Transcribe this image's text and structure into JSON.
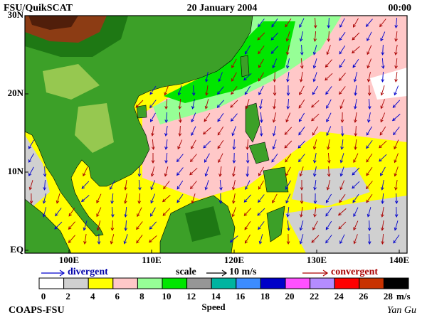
{
  "header": {
    "left": "FSU/QuikSCAT",
    "title": "20 January 2004",
    "time": "00:00"
  },
  "map": {
    "lat_labels": [
      "30N",
      "20N",
      "10N",
      "EQ"
    ],
    "lon_labels": [
      "100E",
      "110E",
      "120E",
      "130E",
      "140E"
    ]
  },
  "legend": {
    "divergent": "divergent",
    "scale": "scale",
    "scale_value": "10 m/s",
    "convergent": "convergent"
  },
  "colorbar": {
    "labels": [
      "0",
      "2",
      "4",
      "6",
      "8",
      "10",
      "12",
      "14",
      "16",
      "18",
      "20",
      "22",
      "24",
      "26",
      "28"
    ],
    "unit": "m/s",
    "title": "Speed",
    "colors": [
      "#ffffff",
      "#d0d0d0",
      "#ffff00",
      "#ffc8c8",
      "#96ff96",
      "#00e600",
      "#969696",
      "#00b4a0",
      "#3c8cff",
      "#0000c8",
      "#ff50ff",
      "#b48cff",
      "#ff0000",
      "#c83200",
      "#000000"
    ]
  },
  "footer": {
    "left": "COAPS-FSU",
    "signature": "Yan Gu"
  }
}
